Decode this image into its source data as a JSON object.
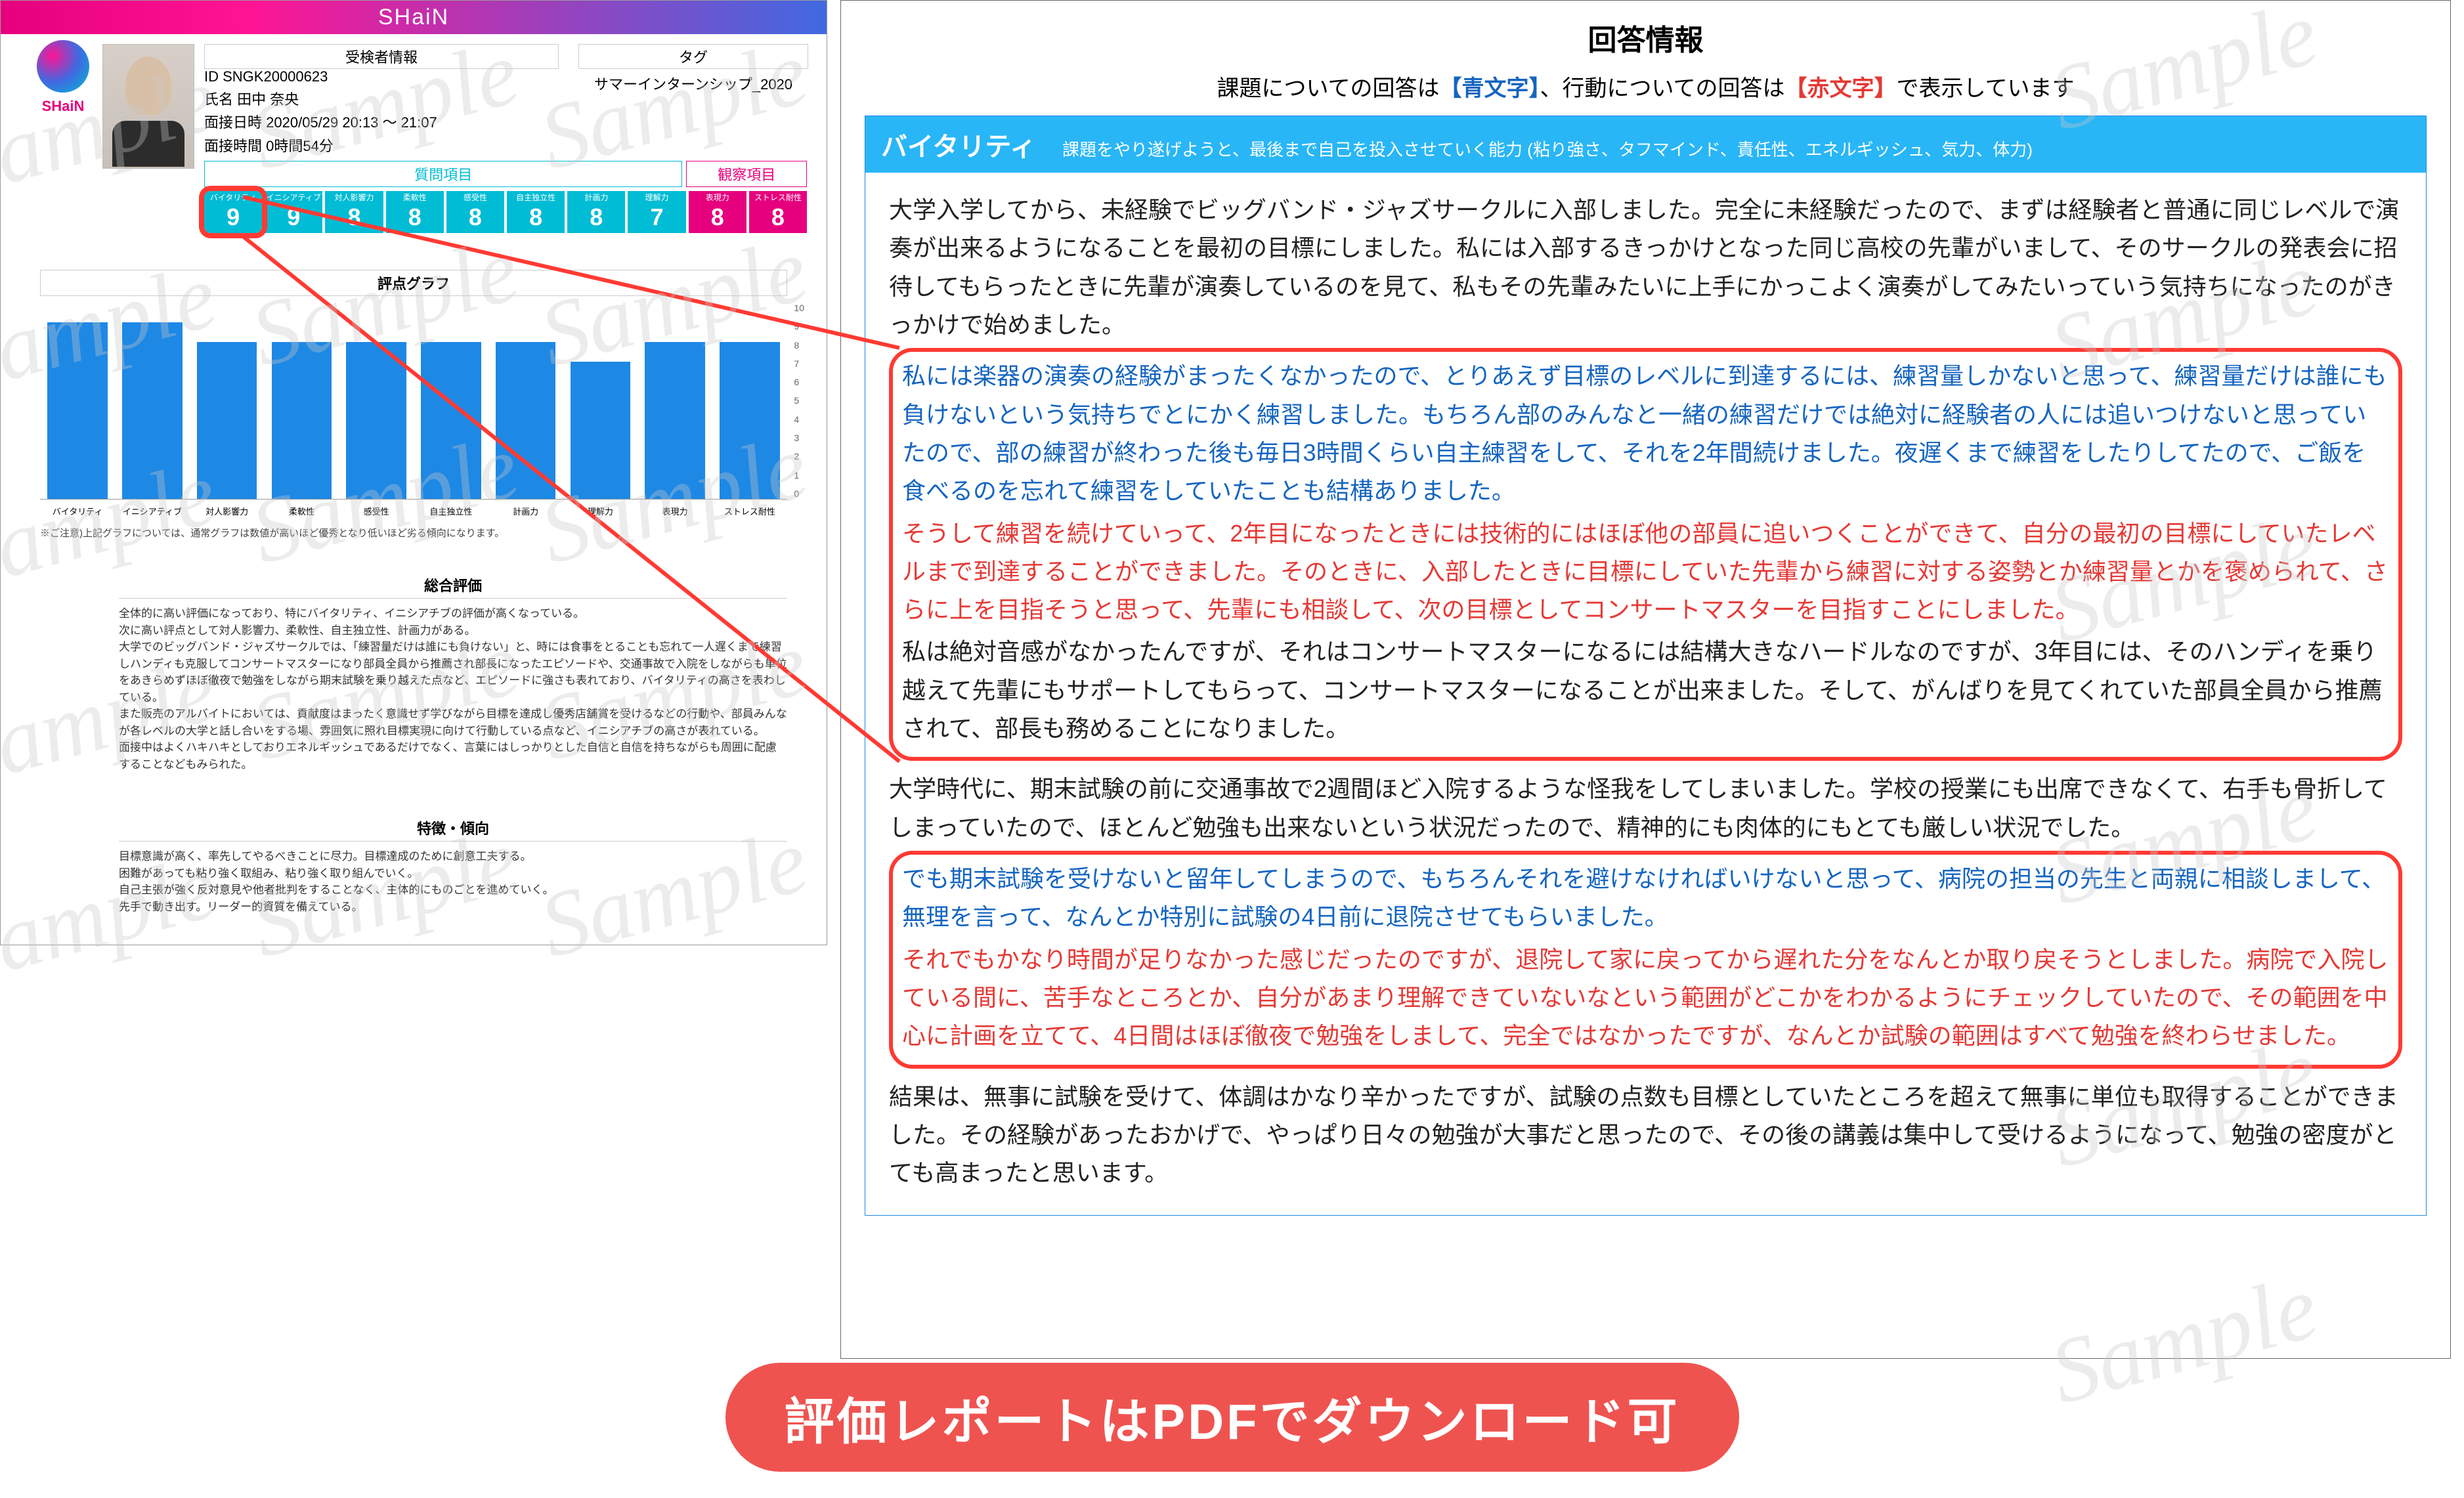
{
  "brand": {
    "name": "SHaiN"
  },
  "candidate": {
    "section_label": "受検者情報",
    "id_label": "ID",
    "id": "SNGK20000623",
    "name_label": "氏名",
    "name": "田中 奈央",
    "interview_label": "面接日時",
    "interview": "2020/05/29 20:13 ～ 21:07",
    "duration_label": "面接時間",
    "duration": "0時間54分"
  },
  "tag": {
    "label": "タグ",
    "value": "サマーインターンシップ_2020"
  },
  "item_headers": {
    "question": "質問項目",
    "observe": "観察項目"
  },
  "scores": {
    "max": 10,
    "items": [
      {
        "label": "バイタリティ",
        "short": "バイタリティ",
        "value": 9,
        "type": "q",
        "highlight": true
      },
      {
        "label": "イニシアティブ",
        "short": "イニシアティブ",
        "value": 9,
        "type": "q"
      },
      {
        "label": "対人影響力",
        "short": "対人影響力",
        "value": 8,
        "type": "q"
      },
      {
        "label": "柔軟性",
        "short": "柔軟性",
        "value": 8,
        "type": "q"
      },
      {
        "label": "感受性",
        "short": "感受性",
        "value": 8,
        "type": "q"
      },
      {
        "label": "自主独立性",
        "short": "自主独立性",
        "value": 8,
        "type": "q"
      },
      {
        "label": "計画力",
        "short": "計画力",
        "value": 8,
        "type": "q"
      },
      {
        "label": "理解力",
        "short": "理解力",
        "value": 7,
        "type": "q"
      },
      {
        "label": "表現力",
        "short": "表現力",
        "value": 8,
        "type": "o"
      },
      {
        "label": "ストレス耐性",
        "short": "ストレス耐性",
        "value": 8,
        "type": "o"
      }
    ]
  },
  "chart": {
    "title": "評点グラフ",
    "ylim": [
      0,
      10
    ],
    "ytick_step": 1,
    "bar_color": "#1e88e5",
    "note": "※ご注意)上記グラフについては、通常グラフは数値が高いほど優秀となり低いほど劣る傾向になります。"
  },
  "overall": {
    "title": "総合評価",
    "body": "全体的に高い評価になっており、特にバイタリティ、イニシアチブの評価が高くなっている。\n次に高い評点として対人影響力、柔軟性、自主独立性、計画力がある。\n大学でのビッグバンド・ジャズサークルでは、「練習量だけは誰にも負けない」と、時には食事をとることも忘れて一人遅くまで練習しハンディも克服してコンサートマスターになり部員全員から推薦され部長になったエピソードや、交通事故で入院をしながらも単位をあきらめずほぼ徹夜で勉強をしながら期末試験を乗り越えた点など、エピソードに強さも表れており、バイタリティの高さを表わしている。\nまた販売のアルバイトにおいては、貢献度はまったく意識せず学びながら目標を達成し優秀店舗賞を受けるなどの行動や、部員みんなが各レベルの大学と話し合いをする場、雰囲気に照れ目標実現に向けて行動している点など、イニシアチブの高さが表れている。\n面接中はよくハキハキとしておりエネルギッシュであるだけでなく、言葉にはしっかりとした自信と自信を持ちながらも周囲に配慮することなどもみられた。"
  },
  "traits": {
    "title": "特徴・傾向",
    "body": "目標意識が高く、率先してやるべきことに尽力。目標達成のために創意工夫する。\n困難があっても粘り強く取組み、粘り強く取り組んでいく。\n自己主張が強く反対意見や他者批判をすることなく、主体的にものごとを進めていく。\n先手で動き出す。リーダー的資質を備えている。"
  },
  "answer": {
    "title": "回答情報",
    "legend_pre": "課題についての回答は",
    "legend_blue": "【青文字】",
    "legend_mid": "、行動についての回答は",
    "legend_red": "【赤文字】",
    "legend_post": "で表示しています",
    "dimension": "バイタリティ",
    "dimension_desc": "課題をやり遂げようと、最後まで自己を投入させていく能力 (粘り強さ、タフマインド、責任性、エネルギッシュ、気力、体力)",
    "p1": "大学入学してから、未経験でビッグバンド・ジャズサークルに入部しました。完全に未経験だったので、まずは経験者と普通に同じレベルで演奏が出来るようになることを最初の目標にしました。私には入部するきっかけとなった同じ高校の先輩がいまして、そのサークルの発表会に招待してもらったときに先輩が演奏しているのを見て、私もその先輩みたいに上手にかっこよく演奏がしてみたいっていう気持ちになったのがきっかけで始めました。",
    "h1_blue": "私には楽器の演奏の経験がまったくなかったので、とりあえず目標のレベルに到達するには、練習量しかないと思って、練習量だけは誰にも負けないという気持ちでとにかく練習しました。もちろん部のみんなと一緒の練習だけでは絶対に経験者の人には追いつけないと思っていたので、部の練習が終わった後も毎日3時間くらい自主練習をして、それを2年間続けました。夜遅くまで練習をしたりしてたので、ご飯を食べるのを忘れて練習をしていたことも結構ありました。",
    "h1_red": "そうして練習を続けていって、2年目になったときには技術的にはほぼ他の部員に追いつくことができて、自分の最初の目標にしていたレベルまで到達することができました。そのときに、入部したときに目標にしていた先輩から練習に対する姿勢とか練習量とかを褒められて、さらに上を目指そうと思って、先輩にも相談して、次の目標としてコンサートマスターを目指すことにしました。",
    "h1_after": "私は絶対音感がなかったんですが、それはコンサートマスターになるには結構大きなハードルなのですが、3年目には、そのハンディを乗り越えて先輩にもサポートしてもらって、コンサートマスターになることが出来ました。そして、がんばりを見てくれていた部員全員から推薦されて、部長も務めることになりました。",
    "p2": "大学時代に、期末試験の前に交通事故で2週間ほど入院するような怪我をしてしまいました。学校の授業にも出席できなくて、右手も骨折してしまっていたので、ほとんど勉強も出来ないという状況だったので、精神的にも肉体的にもとても厳しい状況でした。",
    "h2_blue": "でも期末試験を受けないと留年してしまうので、もちろんそれを避けなければいけないと思って、病院の担当の先生と両親に相談しまして、無理を言って、なんとか特別に試験の4日前に退院させてもらいました。",
    "h2_red": "それでもかなり時間が足りなかった感じだったのですが、退院して家に戻ってから遅れた分をなんとか取り戻そうとしました。病院で入院している間に、苦手なところとか、自分があまり理解できていないなという範囲がどこかをわかるようにチェックしていたので、その範囲を中心に計画を立てて、4日間はほぼ徹夜で勉強をしまして、完全ではなかったですが、なんとか試験の範囲はすべて勉強を終わらせました。",
    "p3": "結果は、無事に試験を受けて、体調はかなり辛かったですが、試験の点数も目標としていたところを超えて無事に単位も取得することができました。その経験があったおかげで、やっぱり日々の勉強が大事だと思ったので、その後の講義は集中して受けるようになって、勉強の密度がとても高まったと思います。"
  },
  "bottom_pill": "評価レポートはPDFでダウンロード可",
  "colors": {
    "brand_gradient_from": "#e6007e",
    "brand_gradient_to": "#4169e1",
    "score_q": "#00bcd4",
    "score_o": "#e6007e",
    "bar": "#1e88e5",
    "highlight": "#ff3a33",
    "blue_text": "#1565c0",
    "red_text": "#e53935",
    "pill": "#ef5350"
  },
  "watermark_text": "Sample"
}
